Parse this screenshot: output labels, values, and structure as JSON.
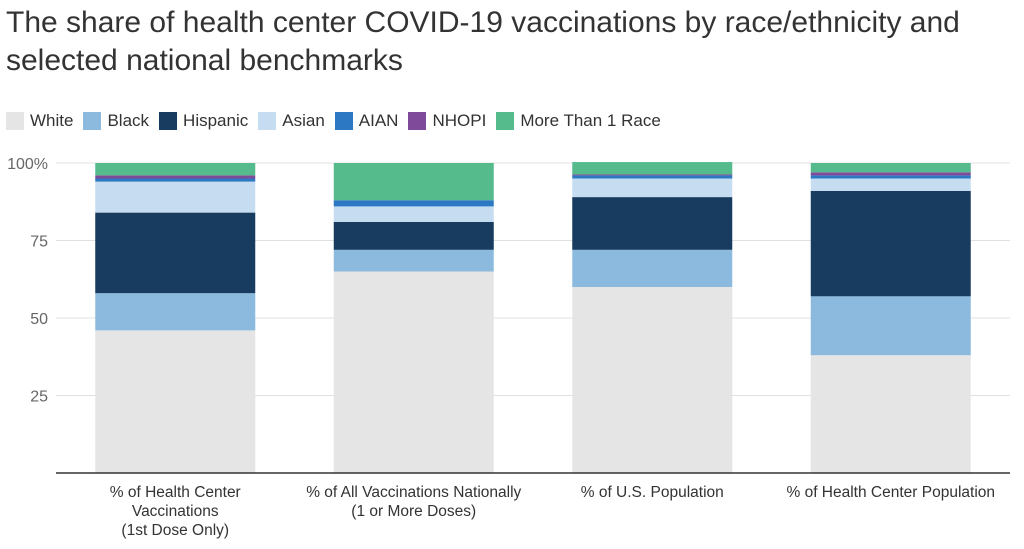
{
  "chart_data": {
    "type": "bar",
    "stacked": true,
    "title": "The share of health center COVID-19 vaccinations by race/ethnicity and selected national benchmarks",
    "ylim": [
      0,
      100
    ],
    "yticks": [
      25,
      50,
      75,
      100
    ],
    "ytick_labels": [
      "25",
      "50",
      "75",
      "100%"
    ],
    "grid": true,
    "legend_position": "top-left",
    "categories": [
      [
        "% of Health Center",
        "Vaccinations",
        "(1st Dose Only)"
      ],
      [
        "% of All Vaccinations Nationally",
        "(1 or More Doses)"
      ],
      [
        "% of U.S. Population"
      ],
      [
        "% of Health Center Population"
      ]
    ],
    "series": [
      {
        "name": "White",
        "color": "#e5e5e5",
        "values": [
          46,
          65,
          60,
          38
        ]
      },
      {
        "name": "Black",
        "color": "#8bbade",
        "values": [
          12,
          7,
          12,
          19
        ]
      },
      {
        "name": "Hispanic",
        "color": "#173c5f",
        "values": [
          26,
          9,
          17,
          34
        ]
      },
      {
        "name": "Asian",
        "color": "#c6ddf1",
        "values": [
          10,
          5,
          6,
          4
        ]
      },
      {
        "name": "AIAN",
        "color": "#2c78c2",
        "values": [
          1,
          2,
          1,
          1
        ]
      },
      {
        "name": "NHOPI",
        "color": "#7f4a9a",
        "values": [
          1,
          0,
          0.3,
          1
        ]
      },
      {
        "name": "More Than 1 Race",
        "color": "#55bb8d",
        "values": [
          4,
          12,
          4,
          3
        ]
      }
    ]
  }
}
